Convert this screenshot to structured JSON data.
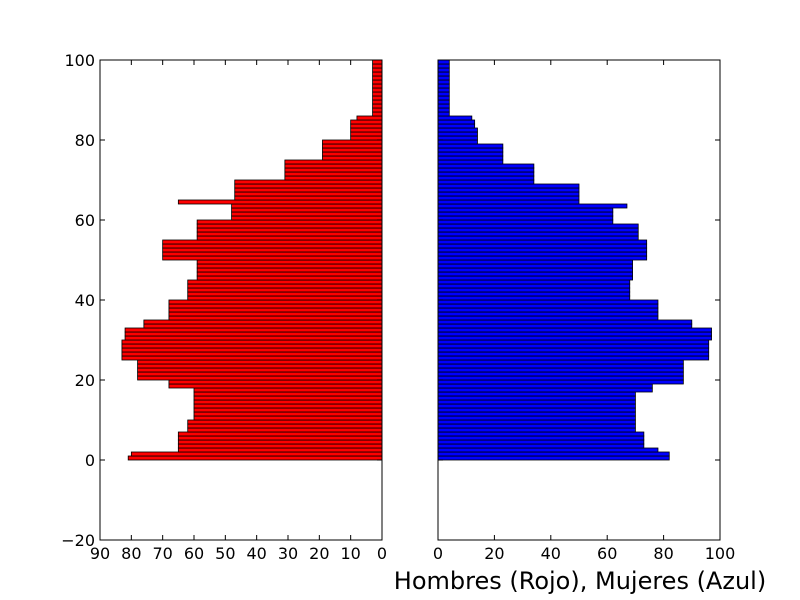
{
  "chart_data": {
    "type": "bar",
    "orientation": "horizontal",
    "layout": "population-pyramid",
    "xlabel": "Hombres (Rojo), Mujeres (Azul)",
    "grid": false,
    "legend": "none",
    "colors": {
      "hombres": "#ff0000",
      "mujeres": "#0000ff",
      "edge": "#000000"
    },
    "y": [
      0,
      1,
      2,
      3,
      4,
      5,
      6,
      7,
      8,
      9,
      10,
      11,
      12,
      13,
      14,
      15,
      16,
      17,
      18,
      19,
      20,
      21,
      22,
      23,
      24,
      25,
      26,
      27,
      28,
      29,
      30,
      31,
      32,
      33,
      34,
      35,
      36,
      37,
      38,
      39,
      40,
      41,
      42,
      43,
      44,
      45,
      46,
      47,
      48,
      49,
      50,
      51,
      52,
      53,
      54,
      55,
      56,
      57,
      58,
      59,
      60,
      61,
      62,
      63,
      64,
      65,
      66,
      67,
      68,
      69,
      70,
      71,
      72,
      73,
      74,
      75,
      76,
      77,
      78,
      79,
      80,
      81,
      82,
      83,
      84,
      85,
      86,
      87,
      88,
      89,
      90,
      91,
      92,
      93,
      94,
      95,
      96,
      97,
      98,
      99
    ],
    "panels": [
      {
        "id": "hombres",
        "color": "#ff0000",
        "xlim": [
          90,
          0
        ],
        "ylim": [
          -20,
          100
        ],
        "xticks": [
          "90",
          "80",
          "70",
          "60",
          "50",
          "40",
          "30",
          "20",
          "10",
          "0"
        ],
        "xtick_values": [
          90,
          80,
          70,
          60,
          50,
          40,
          30,
          20,
          10,
          0
        ],
        "yticks": [
          "100",
          "80",
          "60",
          "40",
          "20",
          "0",
          "−20"
        ],
        "ytick_values": [
          100,
          80,
          60,
          40,
          20,
          0,
          -20
        ],
        "values": [
          81,
          80,
          65,
          65,
          65,
          65,
          65,
          62,
          62,
          62,
          60,
          60,
          60,
          60,
          60,
          60,
          60,
          60,
          68,
          68,
          78,
          78,
          78,
          78,
          78,
          83,
          83,
          83,
          83,
          83,
          82,
          82,
          82,
          76,
          76,
          68,
          68,
          68,
          68,
          68,
          62,
          62,
          62,
          62,
          62,
          59,
          59,
          59,
          59,
          59,
          70,
          70,
          70,
          70,
          70,
          59,
          59,
          59,
          59,
          59,
          48,
          48,
          48,
          48,
          65,
          47,
          47,
          47,
          47,
          47,
          31,
          31,
          31,
          31,
          31,
          19,
          19,
          19,
          19,
          19,
          10,
          10,
          10,
          10,
          10,
          8,
          3,
          3,
          3,
          3,
          3,
          3,
          3,
          3,
          3,
          3,
          3,
          3,
          3,
          3
        ]
      },
      {
        "id": "mujeres",
        "color": "#0000ff",
        "xlim": [
          0,
          100
        ],
        "ylim": [
          -20,
          100
        ],
        "xticks": [
          "0",
          "20",
          "40",
          "60",
          "80",
          "100"
        ],
        "xtick_values": [
          0,
          20,
          40,
          60,
          80,
          100
        ],
        "values": [
          82,
          82,
          78,
          73,
          73,
          73,
          73,
          70,
          70,
          70,
          70,
          70,
          70,
          70,
          70,
          70,
          70,
          76,
          76,
          87,
          87,
          87,
          87,
          87,
          87,
          96,
          96,
          96,
          96,
          96,
          97,
          97,
          97,
          90,
          90,
          78,
          78,
          78,
          78,
          78,
          68,
          68,
          68,
          68,
          68,
          69,
          69,
          69,
          69,
          69,
          74,
          74,
          74,
          74,
          74,
          71,
          71,
          71,
          71,
          62,
          62,
          62,
          62,
          67,
          50,
          50,
          50,
          50,
          50,
          34,
          34,
          34,
          34,
          34,
          23,
          23,
          23,
          23,
          23,
          14,
          14,
          14,
          14,
          13,
          13,
          12,
          4,
          4,
          4,
          4,
          4,
          4,
          4,
          4,
          4,
          4,
          4,
          4,
          4,
          4
        ]
      }
    ]
  }
}
